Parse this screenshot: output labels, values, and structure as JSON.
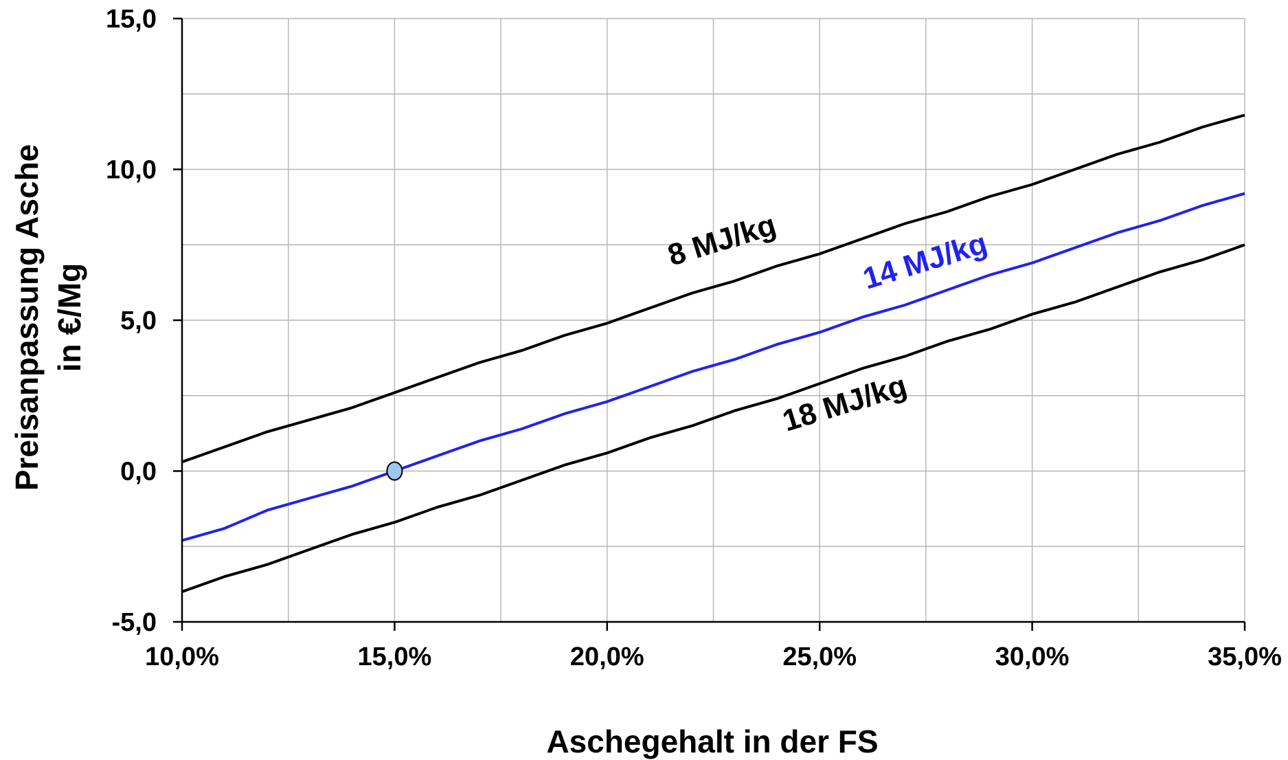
{
  "chart_data": {
    "type": "line",
    "xlabel": "Aschegehalt in der FS",
    "ylabel": [
      "Preisanpassung Asche",
      "in €/Mg"
    ],
    "xlim": [
      0.1,
      0.35
    ],
    "ylim": [
      -5,
      15
    ],
    "x_ticks": [
      0.1,
      0.15,
      0.2,
      0.25,
      0.3,
      0.35
    ],
    "x_tick_labels": [
      "10,0%",
      "15,0%",
      "20,0%",
      "25,0%",
      "30,0%",
      "35,0%"
    ],
    "y_ticks": [
      -5,
      0,
      5,
      10,
      15
    ],
    "y_tick_labels": [
      "-5,0",
      "0,0",
      "5,0",
      "10,0",
      "15,0"
    ],
    "grid": true,
    "x": [
      0.1,
      0.11,
      0.12,
      0.13,
      0.14,
      0.15,
      0.16,
      0.17,
      0.18,
      0.19,
      0.2,
      0.21,
      0.22,
      0.23,
      0.24,
      0.25,
      0.26,
      0.27,
      0.28,
      0.29,
      0.3,
      0.31,
      0.32,
      0.33,
      0.34,
      0.35
    ],
    "series": [
      {
        "name": "8 MJ/kg",
        "color": "#000000",
        "values": [
          0.3,
          0.8,
          1.3,
          1.7,
          2.1,
          2.6,
          3.1,
          3.6,
          4.0,
          4.5,
          4.9,
          5.4,
          5.9,
          6.3,
          6.8,
          7.2,
          7.7,
          8.2,
          8.6,
          9.1,
          9.5,
          10.0,
          10.5,
          10.9,
          11.4,
          11.8
        ]
      },
      {
        "name": "14 MJ/kg",
        "color": "#2222ee",
        "values": [
          -2.3,
          -1.9,
          -1.3,
          -0.9,
          -0.5,
          0.0,
          0.5,
          1.0,
          1.4,
          1.9,
          2.3,
          2.8,
          3.3,
          3.7,
          4.2,
          4.6,
          5.1,
          5.5,
          6.0,
          6.5,
          6.9,
          7.4,
          7.9,
          8.3,
          8.8,
          9.2
        ]
      },
      {
        "name": "18 MJ/kg",
        "color": "#000000",
        "values": [
          -4.0,
          -3.5,
          -3.1,
          -2.6,
          -2.1,
          -1.7,
          -1.2,
          -0.8,
          -0.3,
          0.2,
          0.6,
          1.1,
          1.5,
          2.0,
          2.4,
          2.9,
          3.4,
          3.8,
          4.3,
          4.7,
          5.2,
          5.6,
          6.1,
          6.6,
          7.0,
          7.5
        ]
      }
    ],
    "marker": {
      "x": 0.15,
      "y": 0.0,
      "fill": "#9ec6f0"
    }
  }
}
